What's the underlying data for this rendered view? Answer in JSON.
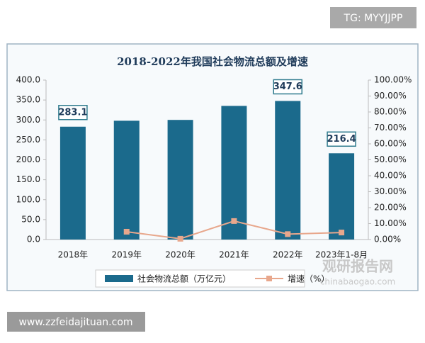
{
  "chart_data": {
    "type": "bar_line",
    "title": "2018-2022年我国社会物流总额及增速",
    "categories": [
      "2018年",
      "2019年",
      "2020年",
      "2021年",
      "2022年",
      "2023年1-8月"
    ],
    "series": [
      {
        "name": "社会物流总额（万亿元）",
        "type": "bar",
        "color": "#1b6a8c",
        "values": [
          283.1,
          298.0,
          300.1,
          335.2,
          347.6,
          216.4
        ],
        "value_labels": [
          "283.1",
          null,
          null,
          null,
          "347.6",
          "216.4"
        ]
      },
      {
        "name": "增速（%）",
        "type": "line",
        "axis": "y2",
        "color": "#e8a78c",
        "values": [
          null,
          4.9,
          0.5,
          11.6,
          3.4,
          4.4
        ]
      }
    ],
    "ylim": [
      0,
      400
    ],
    "yticks": [
      {
        "value": 0,
        "label": "0.0"
      },
      {
        "value": 50,
        "label": "50.0"
      },
      {
        "value": 100,
        "label": "100.0"
      },
      {
        "value": 150,
        "label": "150.0"
      },
      {
        "value": 200,
        "label": "200.0"
      },
      {
        "value": 250,
        "label": "250.0"
      },
      {
        "value": 300,
        "label": "300.0"
      },
      {
        "value": 350,
        "label": "350.0"
      },
      {
        "value": 400,
        "label": "400.0"
      }
    ],
    "y2lim": [
      0,
      100
    ],
    "y2ticks": [
      {
        "value": 0,
        "label": "0.00%"
      },
      {
        "value": 10,
        "label": "10.00%"
      },
      {
        "value": 20,
        "label": "20.00%"
      },
      {
        "value": 30,
        "label": "30.00%"
      },
      {
        "value": 40,
        "label": "40.00%"
      },
      {
        "value": 50,
        "label": "50.00%"
      },
      {
        "value": 60,
        "label": "60.00%"
      },
      {
        "value": 70,
        "label": "70.00%"
      },
      {
        "value": 80,
        "label": "80.00%"
      },
      {
        "value": 90,
        "label": "90.00%"
      },
      {
        "value": 100,
        "label": "100.00%"
      }
    ],
    "grid": false,
    "legend": "bottom"
  },
  "watermarks": {
    "top_right": "TG: MYYJJPP",
    "bottom_left": "www.zzfeidajituan.com",
    "brand": "观研报告网",
    "site": "chinabaogao.com"
  }
}
